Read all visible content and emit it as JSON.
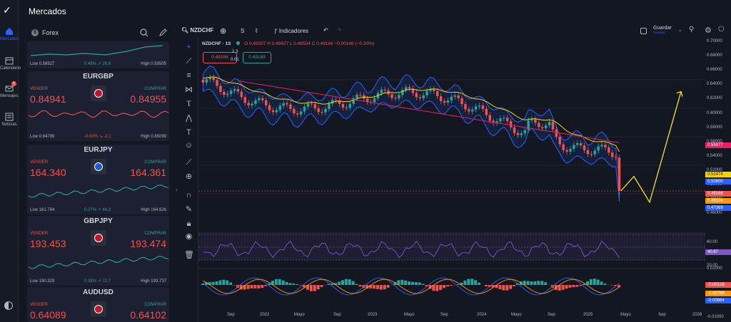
{
  "app": {
    "title": "Mercados"
  },
  "rail": [
    {
      "label": "Mercados"
    },
    {
      "label": "Calendario"
    },
    {
      "label": "Mensajes",
      "badge": "1"
    },
    {
      "label": "Noticias"
    }
  ],
  "panel": {
    "section": "Forex"
  },
  "top_card": {
    "low": "Low 0.58927",
    "change": "0.45% ↗ 26.6",
    "high": "High 0.59505"
  },
  "cards": [
    {
      "symbol": "EURGBP",
      "sell_label": "VENDER",
      "buy_label": "COMPRAR",
      "sell": "0.84941",
      "buy": "0.84955",
      "low": "Low 0.84789",
      "change": "-0.02% ↘ -2.1",
      "high": "High 0.85099",
      "up": false
    },
    {
      "symbol": "EURJPY",
      "sell_label": "VENDER",
      "buy_label": "COMPRAR",
      "sell": "164.340",
      "buy": "164.361",
      "low": "Low 161.794",
      "change": "0.27% ↗ 46.2",
      "high": "High 164.626",
      "up": true
    },
    {
      "symbol": "GBPJPY",
      "sell_label": "VENDER",
      "buy_label": "COMPRAR",
      "sell": "193.453",
      "buy": "193.474",
      "low": "Low 190.329",
      "change": "0.38% ↗ 72.7",
      "high": "High 193.737",
      "up": true
    },
    {
      "symbol": "AUDUSD",
      "sell_label": "VENDER",
      "buy_label": "COMPRAR",
      "sell": "0.64089",
      "buy": "0.64102",
      "low": "",
      "change": "",
      "high": "",
      "up": true
    }
  ],
  "topbar": {
    "symbol": "NZDCHF",
    "interval": "S",
    "indicators": "Indicadores",
    "save": "Guardar",
    "save_sub": "Guardar"
  },
  "chart": {
    "legend": {
      "title": "NZDCHF · 1S",
      "o": "O 0.49307",
      "h": "H 0.49427",
      "l": "L 0.48504",
      "c": "C 0.49166",
      "chg": "−0.00146 (−0.30%)",
      "sell": "0.49166",
      "spread1": "2.3",
      "spread2": "0.01",
      "buy": "0.49189"
    },
    "price_ticks": [
      "0.70000",
      "0.68000",
      "0.66000",
      "0.64000",
      "0.62000",
      "0.60000",
      "0.58000",
      "0.56000",
      "0.54000",
      "0.52000",
      "0.50000",
      "0.48000",
      "0.46000"
    ],
    "badges": [
      {
        "v": "0.55877",
        "c": "#e91e63"
      },
      {
        "v": "0.51474",
        "c": "#f5d300"
      },
      {
        "v": "0.50900",
        "c": "#2962ff"
      },
      {
        "v": "0.49166",
        "c": "#ef5350"
      },
      {
        "v": "0.49124",
        "c": "#ff9800"
      },
      {
        "v": "0.47369",
        "c": "#2962ff"
      }
    ],
    "rsi_ticks": [
      "60.00",
      "20.00"
    ],
    "rsi_badge": "40.67",
    "macd_ticks": [
      "0.01000",
      "-0.01000"
    ],
    "macd_badges": [
      {
        "v": "-0.00128",
        "c": "#ef5350"
      },
      {
        "v": "-0.00756",
        "c": "#ff9800"
      },
      {
        "v": "-0.00884",
        "c": "#2962ff"
      }
    ],
    "time_ticks": [
      "Sep",
      "2022",
      "Mayo",
      "Sep",
      "2023",
      "Mayo",
      "Sep",
      "2024",
      "Mayo",
      "Sep",
      "2025",
      "Mayo",
      "Sep",
      "2026"
    ]
  },
  "colors": {
    "bg": "#131722",
    "up": "#26a69a",
    "down": "#ef5350",
    "ema": "#f5d300",
    "sma": "#e91e63",
    "band": "#2962ff"
  }
}
